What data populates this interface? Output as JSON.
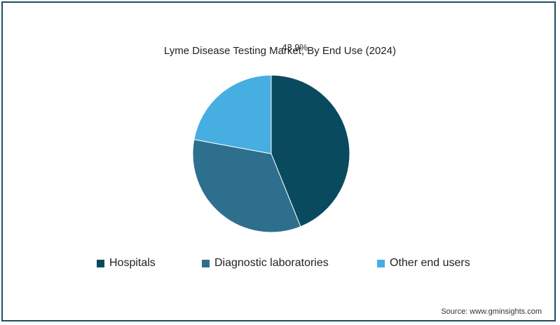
{
  "chart_data": {
    "type": "pie",
    "title": "Lyme Disease Testing Market, By End Use (2024)",
    "categories": [
      "Hospitals",
      "Diagnostic laboratories",
      "Other end users"
    ],
    "values": [
      43.9,
      34.0,
      22.1
    ],
    "data_labels": [
      "43.9%",
      "",
      ""
    ],
    "colors": [
      "#0a4a5e",
      "#2e6f8e",
      "#46aee0"
    ],
    "legend_placement": "bottom",
    "source": "Source: www.gminsights.com"
  }
}
